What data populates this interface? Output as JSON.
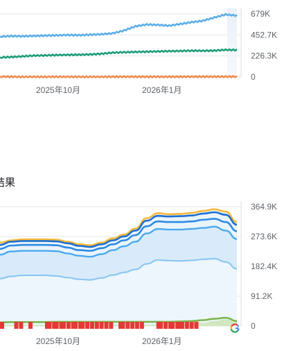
{
  "section_title": "结果",
  "chart_data": [
    {
      "type": "line",
      "x_labels": [
        "2025年10月",
        "2026年1月"
      ],
      "y_ticks": [
        "679K",
        "452.7K",
        "226.3K",
        "0"
      ],
      "y_values": [
        679000,
        452700,
        226300,
        0
      ],
      "ylim": [
        0,
        679000
      ],
      "grid": true,
      "series": [
        {
          "color": "#5aaeea",
          "values": [
            435000,
            440000,
            438000,
            442000,
            445000,
            448000,
            452000,
            450000,
            455000,
            460000,
            470000,
            500000,
            545000,
            565000,
            560000,
            552000,
            570000,
            590000,
            605000,
            640000,
            672000,
            660000
          ]
        },
        {
          "color": "#1e9e78",
          "values": [
            210000,
            215000,
            222000,
            230000,
            232000,
            236000,
            238000,
            240000,
            243000,
            250000,
            262000,
            266000,
            270000,
            272000,
            275000,
            278000,
            280000,
            283000,
            282000,
            284000,
            292000,
            290000
          ]
        },
        {
          "color": "#f08a4b",
          "values": [
            4000,
            3000,
            2000,
            2000,
            2000,
            2000,
            2000,
            2000,
            2000,
            2000,
            3000,
            3000,
            3000,
            3000,
            3000,
            3000,
            3000,
            4000,
            4000,
            4000,
            4000,
            4000
          ]
        }
      ]
    },
    {
      "type": "area",
      "x_labels": [
        "2025年10月",
        "2026年1月"
      ],
      "y_ticks": [
        "364.9K",
        "273.6K",
        "182.4K",
        "91.2K",
        "0"
      ],
      "y_values": [
        364900,
        273600,
        182400,
        91200,
        0
      ],
      "ylim": [
        0,
        364900
      ],
      "grid": true,
      "series": [
        {
          "color": "#f6b83a",
          "values": [
            255000,
            262000,
            265000,
            265000,
            265000,
            264000,
            258000,
            250000,
            247000,
            255000,
            268000,
            280000,
            298000,
            330000,
            345000,
            342000,
            343000,
            346000,
            352000,
            357000,
            350000,
            318000
          ]
        },
        {
          "color": "#1c6fcf",
          "values": [
            248000,
            258000,
            260000,
            260000,
            260000,
            259000,
            253000,
            245000,
            242000,
            250000,
            262000,
            274000,
            292000,
            322000,
            337000,
            335000,
            336000,
            338000,
            344000,
            348000,
            340000,
            310000
          ]
        },
        {
          "color": "#2d8be3",
          "values": [
            236000,
            246000,
            248000,
            248000,
            248000,
            247000,
            240000,
            232000,
            230000,
            238000,
            250000,
            262000,
            278000,
            305000,
            320000,
            318000,
            318000,
            320000,
            325000,
            328000,
            318000,
            290000
          ]
        },
        {
          "color": "#49a9f0",
          "values": [
            218000,
            228000,
            230000,
            230000,
            230000,
            229000,
            222000,
            215000,
            212000,
            220000,
            232000,
            244000,
            258000,
            283000,
            297000,
            295000,
            295000,
            297000,
            300000,
            304000,
            292000,
            266000
          ]
        },
        {
          "color": "#8bc8f3",
          "values": [
            145000,
            152000,
            155000,
            155000,
            155000,
            153000,
            148000,
            143000,
            141000,
            147000,
            156000,
            164000,
            173000,
            190000,
            202000,
            200000,
            199000,
            201000,
            204000,
            206000,
            196000,
            175000
          ]
        },
        {
          "color": "#7ab648",
          "values": [
            11000,
            12000,
            12000,
            12000,
            12000,
            13000,
            13000,
            13000,
            13000,
            13000,
            13000,
            13000,
            13000,
            13000,
            13000,
            13000,
            14000,
            15000,
            18000,
            22000,
            25000,
            15000
          ]
        },
        {
          "color": "#c9e3b2",
          "values": [
            4000,
            4000,
            4000,
            4000,
            4000,
            4000,
            4000,
            4000,
            4000,
            4000,
            4000,
            4000,
            4000,
            4000,
            4000,
            4000,
            5000,
            6000,
            10000,
            16000,
            20000,
            12000
          ]
        }
      ],
      "marker_color": "#e53935",
      "marker_positions": [
        0.0,
        0.06,
        0.08,
        0.12,
        0.19,
        0.2,
        0.22,
        0.23,
        0.25,
        0.26,
        0.28,
        0.3,
        0.31,
        0.33,
        0.34,
        0.36,
        0.38,
        0.4,
        0.42,
        0.44,
        0.46,
        0.5,
        0.51,
        0.53,
        0.55,
        0.57,
        0.59,
        0.66,
        0.67,
        0.69,
        0.71,
        0.72,
        0.74,
        0.75,
        0.76,
        0.78,
        0.8,
        0.82
      ]
    }
  ]
}
